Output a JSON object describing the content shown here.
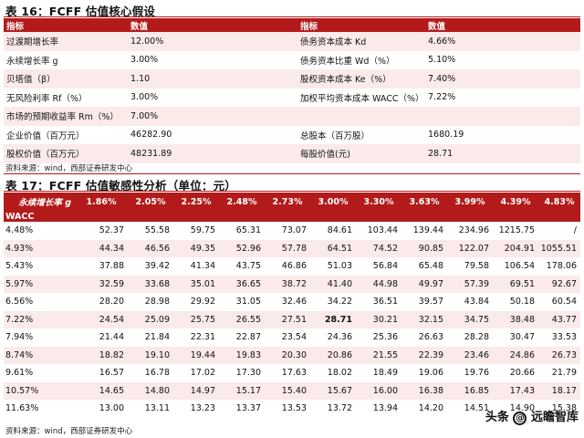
{
  "table16": {
    "title": "表 16：FCFF 估值核心假设",
    "headers": [
      "指标",
      "数值",
      "指标",
      "数值"
    ],
    "rows": [
      [
        "过渡期增长率",
        "12.00%",
        "债务资本成本 Kd",
        "4.66%"
      ],
      [
        "永续增长率 g",
        "3.00%",
        "债务资本比重 Wd（%）",
        "5.10%"
      ],
      [
        "贝塔值（β）",
        "1.10",
        "股权资本成本 Ke（%）",
        "7.40%"
      ],
      [
        "无风险利率 Rf（%）",
        "3.00%",
        "加权平均资本成本 WACC（%）",
        "7.22%"
      ],
      [
        "市场的预期收益率 Rm（%）",
        "7.00%",
        "",
        ""
      ],
      [
        "企业价值（百万元）",
        "46282.90",
        "总股本（百万股）",
        "1680.19"
      ],
      [
        "股权价值（百万元）",
        "48231.89",
        "每股价值(元)",
        "28.71"
      ]
    ],
    "source": "资料来源：wind，西部证券研发中心"
  },
  "table17": {
    "title": "表 17：FCFF 估值敏感性分析（单位：元）",
    "g_label": "永续增长率 g",
    "wacc_label": "WACC",
    "g_values": [
      "1.86%",
      "2.05%",
      "2.25%",
      "2.48%",
      "2.73%",
      "3.00%",
      "3.30%",
      "3.63%",
      "3.99%",
      "4.39%",
      "4.83%"
    ],
    "rows": [
      {
        "wacc": "4.48%",
        "values": [
          "52.37",
          "55.58",
          "59.75",
          "65.31",
          "73.07",
          "84.61",
          "103.44",
          "139.44",
          "234.96",
          "1215.75",
          "/"
        ]
      },
      {
        "wacc": "4.93%",
        "values": [
          "44.34",
          "46.56",
          "49.35",
          "52.96",
          "57.78",
          "64.51",
          "74.52",
          "90.85",
          "122.07",
          "204.91",
          "1055.51"
        ]
      },
      {
        "wacc": "5.43%",
        "values": [
          "37.88",
          "39.42",
          "41.34",
          "43.75",
          "46.86",
          "51.03",
          "56.84",
          "65.48",
          "79.58",
          "106.54",
          "178.06"
        ]
      },
      {
        "wacc": "5.97%",
        "values": [
          "32.59",
          "33.68",
          "35.01",
          "36.65",
          "38.72",
          "41.40",
          "44.98",
          "49.97",
          "57.39",
          "69.51",
          "92.67"
        ]
      },
      {
        "wacc": "6.56%",
        "values": [
          "28.20",
          "28.98",
          "29.92",
          "31.05",
          "32.46",
          "34.22",
          "36.51",
          "39.57",
          "43.84",
          "50.18",
          "60.54"
        ]
      },
      {
        "wacc": "7.22%",
        "values": [
          "24.54",
          "25.09",
          "25.75",
          "26.55",
          "27.51",
          "28.71",
          "30.21",
          "32.15",
          "34.75",
          "38.48",
          "43.77"
        ]
      },
      {
        "wacc": "7.94%",
        "values": [
          "21.44",
          "21.84",
          "22.31",
          "22.87",
          "23.54",
          "24.36",
          "25.36",
          "26.63",
          "28.28",
          "30.47",
          "33.53"
        ]
      },
      {
        "wacc": "8.74%",
        "values": [
          "18.82",
          "19.10",
          "19.44",
          "19.83",
          "20.30",
          "20.86",
          "21.55",
          "22.39",
          "23.46",
          "24.86",
          "26.73"
        ]
      },
      {
        "wacc": "9.61%",
        "values": [
          "16.57",
          "16.78",
          "17.02",
          "17.30",
          "17.63",
          "18.02",
          "18.49",
          "19.06",
          "19.76",
          "20.66",
          "21.79"
        ]
      },
      {
        "wacc": "10.57%",
        "values": [
          "14.65",
          "14.80",
          "14.97",
          "15.17",
          "15.40",
          "15.67",
          "16.00",
          "16.38",
          "16.85",
          "17.43",
          "18.17"
        ]
      },
      {
        "wacc": "11.63%",
        "values": [
          "13.00",
          "13.11",
          "13.23",
          "13.37",
          "13.53",
          "13.72",
          "13.94",
          "14.20",
          "14.51",
          "14.90",
          "15.38"
        ]
      }
    ],
    "highlight_value": "28.71",
    "source": "资料来源：wind，西部证券研发中心"
  },
  "watermark": {
    "prefix": "头条",
    "at": "@",
    "name": "远瞻智库"
  },
  "colors": {
    "header_red": "#b31b1b",
    "stripe_pink": "#fbeaea"
  }
}
